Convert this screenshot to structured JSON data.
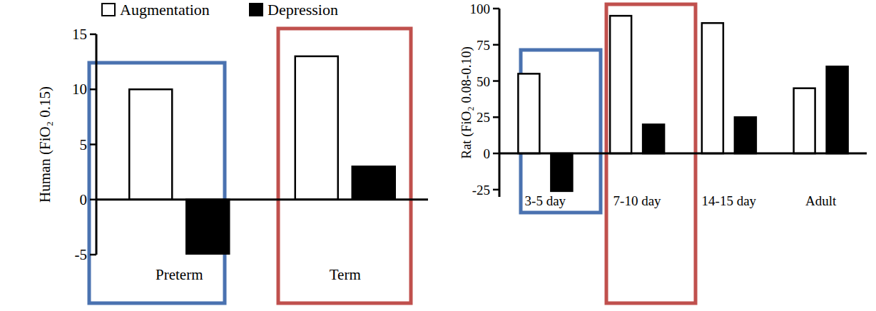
{
  "chart_data": [
    {
      "type": "bar",
      "y_label": "Human (FiO₂ 0.15)",
      "categories": [
        "Preterm",
        "Term"
      ],
      "series": [
        {
          "name": "Augmentation",
          "color": "#ffffff",
          "values": [
            10,
            13
          ]
        },
        {
          "name": "Depression",
          "color": "#000000",
          "values": [
            -5,
            3
          ]
        }
      ],
      "ylim": [
        -5,
        15
      ],
      "yticks": [
        -5,
        0,
        5,
        10,
        15
      ],
      "grid": false,
      "legend": "top"
    },
    {
      "type": "bar",
      "y_label": "Rat (FiO₂ 0.08-0.10)",
      "categories": [
        "3-5 day",
        "7-10 day",
        "14-15 day",
        "Adult"
      ],
      "series": [
        {
          "color": "#ffffff",
          "values": [
            55,
            95,
            90,
            45
          ]
        },
        {
          "color": "#000000",
          "values": [
            -26,
            20,
            25,
            60
          ]
        }
      ],
      "ylim": [
        -30,
        100
      ],
      "yticks": [
        -25,
        0,
        25,
        50,
        75,
        100
      ],
      "grid": false
    }
  ]
}
